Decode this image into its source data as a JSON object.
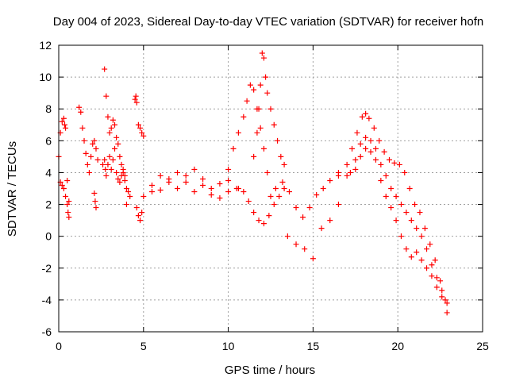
{
  "chart_data": {
    "type": "scatter",
    "title": "Day 004 of 2023, Sidereal Day-to-day VTEC variation (SDTVAR) for receiver hofn",
    "xlabel": "GPS time / hours",
    "ylabel": "SDTVAR / TECUs",
    "xlim": [
      0,
      25
    ],
    "ylim": [
      -6,
      12
    ],
    "xticks": [
      0,
      5,
      10,
      15,
      20,
      25
    ],
    "yticks": [
      -6,
      -4,
      -2,
      0,
      2,
      4,
      6,
      8,
      10,
      12
    ],
    "grid": true,
    "marker": "+",
    "color": "#ff0000",
    "series": [
      {
        "name": "SDTVAR",
        "x": [
          0.0,
          0.1,
          0.2,
          0.3,
          0.35,
          0.4,
          0.5,
          0.6,
          0.1,
          0.2,
          0.3,
          0.4,
          0.5,
          0.55,
          0.6,
          1.2,
          1.3,
          1.4,
          1.5,
          1.6,
          1.7,
          1.8,
          1.9,
          2.0,
          2.1,
          2.2,
          2.3,
          2.1,
          2.15,
          2.2,
          2.6,
          2.7,
          2.8,
          2.9,
          3.0,
          3.1,
          3.2,
          3.3,
          3.4,
          3.5,
          3.6,
          3.7,
          3.8,
          3.9,
          4.0,
          4.1,
          4.2,
          2.7,
          2.75,
          2.8,
          2.9,
          3.0,
          3.1,
          3.2,
          3.3,
          3.4,
          3.5,
          3.6,
          3.7,
          3.8,
          3.9,
          4.0,
          4.5,
          4.55,
          4.6,
          4.7,
          4.8,
          4.9,
          5.0,
          4.6,
          4.7,
          4.8,
          4.9,
          5.0,
          5.5,
          6.0,
          6.5,
          7.0,
          7.5,
          8.0,
          8.5,
          9.0,
          9.5,
          10.0,
          10.5,
          5.5,
          6.0,
          6.5,
          7.0,
          7.5,
          8.0,
          8.5,
          9.0,
          9.5,
          10.0,
          10.0,
          10.3,
          10.6,
          10.9,
          11.1,
          11.3,
          11.5,
          11.7,
          11.9,
          12.1,
          12.3,
          12.5,
          10.6,
          10.9,
          11.2,
          11.5,
          11.8,
          12.1,
          12.4,
          12.7,
          13.0,
          13.3,
          11.5,
          11.7,
          11.8,
          11.9,
          12.0,
          12.1,
          12.2,
          12.3,
          12.5,
          12.7,
          12.9,
          13.1,
          13.3,
          12.8,
          13.2,
          13.6,
          14.0,
          14.4,
          14.8,
          15.2,
          15.6,
          16.0,
          16.5,
          17.0,
          13.5,
          14.0,
          14.5,
          15.0,
          15.5,
          16.0,
          16.5,
          16.5,
          17.0,
          17.3,
          17.6,
          17.9,
          18.1,
          18.3,
          18.6,
          18.9,
          19.2,
          19.5,
          19.8,
          20.1,
          20.4,
          20.7,
          21.0,
          21.3,
          21.6,
          21.9,
          22.2,
          22.5,
          22.8,
          17.2,
          17.5,
          17.8,
          18.1,
          18.4,
          18.7,
          19.0,
          19.3,
          19.6,
          19.9,
          20.2,
          20.5,
          20.8,
          21.1,
          21.4,
          21.7,
          22.0,
          22.3,
          22.6,
          22.9,
          17.5,
          17.8,
          18.1,
          18.4,
          18.7,
          19.0,
          19.3,
          19.6,
          19.9,
          20.2,
          20.5,
          20.8,
          21.1,
          21.4,
          21.7,
          22.0,
          22.3,
          22.6,
          22.9
        ],
        "y": [
          5.0,
          6.5,
          7.2,
          7.4,
          7.0,
          6.8,
          3.5,
          2.2,
          3.4,
          3.2,
          3.0,
          2.5,
          2.0,
          1.5,
          1.2,
          8.1,
          7.8,
          6.8,
          6.0,
          5.2,
          4.5,
          4.0,
          5.0,
          5.8,
          6.0,
          5.5,
          4.8,
          2.7,
          2.2,
          1.8,
          4.5,
          10.5,
          8.8,
          7.5,
          6.5,
          6.8,
          7.3,
          7.0,
          6.2,
          5.8,
          5.0,
          4.5,
          4.0,
          3.8,
          3.0,
          2.8,
          2.5,
          4.8,
          4.2,
          3.8,
          4.5,
          5.0,
          4.2,
          4.8,
          5.5,
          4.0,
          3.6,
          3.4,
          3.8,
          4.2,
          3.5,
          2.0,
          8.6,
          8.8,
          8.4,
          7.0,
          6.8,
          6.5,
          6.3,
          1.8,
          1.3,
          1.0,
          1.5,
          2.5,
          3.2,
          3.8,
          3.4,
          3.0,
          3.8,
          4.2,
          3.6,
          3.0,
          3.3,
          3.5,
          3.0,
          2.8,
          2.9,
          3.6,
          4.0,
          3.4,
          2.8,
          3.2,
          2.6,
          2.4,
          2.8,
          4.2,
          5.5,
          6.5,
          7.5,
          8.5,
          9.5,
          9.2,
          8.0,
          6.8,
          5.5,
          4.0,
          2.5,
          3.0,
          2.8,
          2.2,
          1.5,
          1.0,
          0.8,
          1.3,
          2.0,
          2.5,
          3.0,
          5.0,
          6.5,
          8.0,
          9.5,
          11.5,
          11.2,
          10.0,
          9.0,
          8.0,
          7.0,
          6.0,
          5.0,
          4.5,
          3.0,
          3.4,
          2.8,
          1.8,
          1.2,
          1.8,
          2.6,
          3.0,
          3.5,
          4.0,
          3.8,
          0.0,
          -0.5,
          -0.8,
          -1.4,
          0.5,
          1.0,
          2.0,
          3.8,
          4.5,
          5.5,
          6.5,
          7.5,
          7.7,
          7.4,
          6.8,
          6.0,
          5.3,
          4.8,
          4.6,
          4.5,
          4.0,
          3.0,
          2.0,
          1.5,
          0.5,
          -0.5,
          -1.5,
          -2.8,
          -4.0,
          4.0,
          4.8,
          5.8,
          6.2,
          6.0,
          5.5,
          4.5,
          3.8,
          3.0,
          2.5,
          2.0,
          1.5,
          1.0,
          0.5,
          0.0,
          -0.8,
          -1.8,
          -2.6,
          -3.4,
          -4.2,
          4.2,
          5.0,
          5.5,
          5.3,
          4.8,
          3.5,
          2.5,
          1.8,
          1.0,
          0.0,
          -0.8,
          -1.3,
          -1.0,
          -1.5,
          -2.0,
          -2.5,
          -3.2,
          -3.8,
          -4.8
        ]
      }
    ]
  }
}
